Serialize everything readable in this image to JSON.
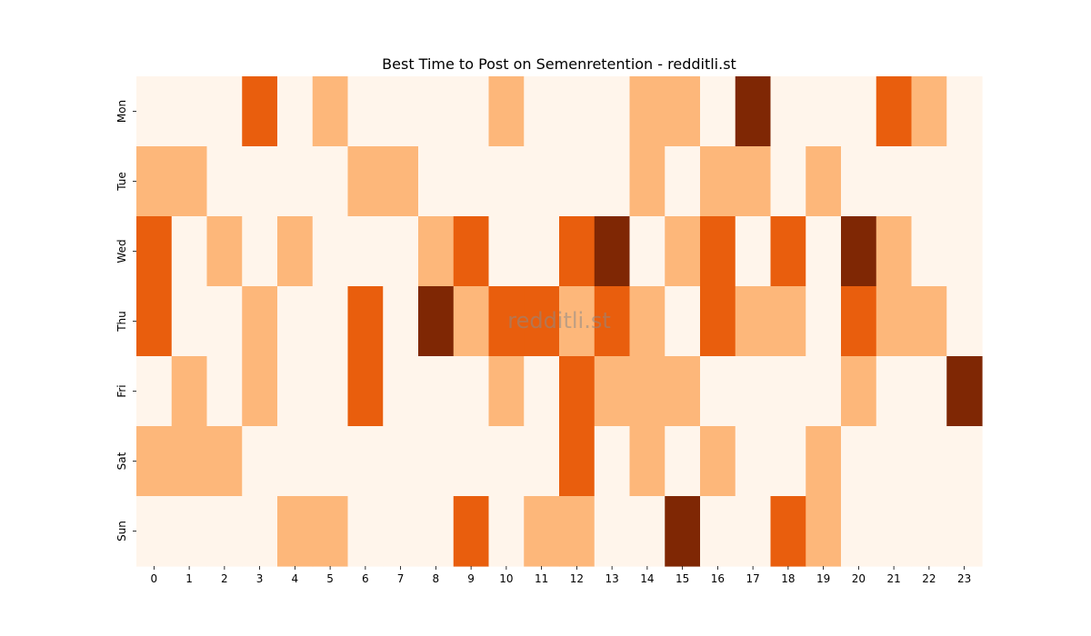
{
  "chart_data": {
    "type": "heatmap",
    "title": "Best Time to Post on Semenretention - redditli.st",
    "watermark": "redditli.st",
    "x_categories": [
      "0",
      "1",
      "2",
      "3",
      "4",
      "5",
      "6",
      "7",
      "8",
      "9",
      "10",
      "11",
      "12",
      "13",
      "14",
      "15",
      "16",
      "17",
      "18",
      "19",
      "20",
      "21",
      "22",
      "23"
    ],
    "y_categories": [
      "Mon",
      "Tue",
      "Wed",
      "Thu",
      "Fri",
      "Sat",
      "Sun"
    ],
    "value_scale": [
      0,
      3
    ],
    "colormap": [
      "#fff5eb",
      "#fdb77a",
      "#e95e0d",
      "#7f2704"
    ],
    "values": [
      [
        0,
        0,
        0,
        2,
        0,
        1,
        0,
        0,
        0,
        0,
        1,
        0,
        0,
        0,
        1,
        1,
        0,
        3,
        0,
        0,
        0,
        2,
        1,
        0
      ],
      [
        1,
        1,
        0,
        0,
        0,
        0,
        1,
        1,
        0,
        0,
        0,
        0,
        0,
        0,
        1,
        0,
        1,
        1,
        0,
        1,
        0,
        0,
        0,
        0
      ],
      [
        2,
        0,
        1,
        0,
        1,
        0,
        0,
        0,
        1,
        2,
        0,
        0,
        2,
        3,
        0,
        1,
        2,
        0,
        2,
        0,
        3,
        1,
        0,
        0
      ],
      [
        2,
        0,
        0,
        1,
        0,
        0,
        2,
        0,
        3,
        1,
        2,
        2,
        1,
        2,
        1,
        0,
        2,
        1,
        1,
        0,
        2,
        1,
        1,
        0
      ],
      [
        0,
        1,
        0,
        1,
        0,
        0,
        2,
        0,
        0,
        0,
        1,
        0,
        2,
        1,
        1,
        1,
        0,
        0,
        0,
        0,
        1,
        0,
        0,
        3
      ],
      [
        1,
        1,
        1,
        0,
        0,
        0,
        0,
        0,
        0,
        0,
        0,
        0,
        2,
        0,
        1,
        0,
        1,
        0,
        0,
        1,
        0,
        0,
        0,
        0
      ],
      [
        0,
        0,
        0,
        0,
        1,
        1,
        0,
        0,
        0,
        2,
        0,
        1,
        1,
        0,
        0,
        3,
        0,
        0,
        2,
        1,
        0,
        0,
        0,
        0
      ]
    ],
    "grid": false,
    "colorbar": false
  }
}
